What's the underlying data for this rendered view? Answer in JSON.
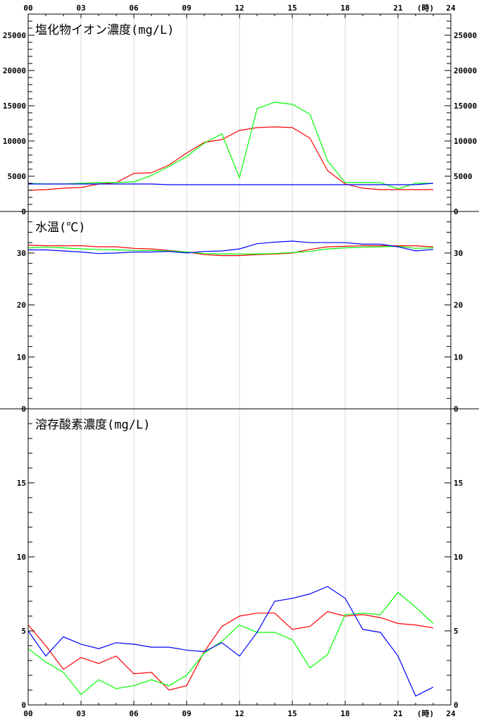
{
  "chart_data": {
    "type": "line",
    "x_unit": "(時)",
    "x_ticks": [
      "00",
      "03",
      "06",
      "09",
      "12",
      "15",
      "18",
      "21",
      "24"
    ],
    "x_range": [
      0,
      24
    ],
    "x": [
      0,
      1,
      2,
      3,
      4,
      5,
      6,
      7,
      8,
      9,
      10,
      11,
      12,
      13,
      14,
      15,
      16,
      17,
      18,
      19,
      20,
      21,
      22,
      23
    ],
    "panels": [
      {
        "title": "塩化物イオン濃度(mg/L)",
        "ylim": [
          0,
          28000
        ],
        "y_ticks": [
          0,
          5000,
          10000,
          15000,
          20000,
          25000
        ],
        "minor_step": 1000,
        "series": [
          {
            "color": "#ff0000",
            "values": [
              3000,
              3100,
              3300,
              3400,
              3900,
              4100,
              5400,
              5500,
              6600,
              8300,
              9800,
              10200,
              11500,
              11900,
              12000,
              11900,
              10400,
              5800,
              3900,
              3300,
              3100,
              3100,
              3100,
              3100
            ]
          },
          {
            "color": "#00ff00",
            "values": [
              4000,
              3900,
              3900,
              4000,
              4100,
              4100,
              4200,
              5100,
              6400,
              7800,
              9700,
              11000,
              4800,
              14600,
              15500,
              15200,
              13800,
              7200,
              4100,
              4100,
              4100,
              3200,
              4000,
              4000
            ]
          },
          {
            "color": "#0000ff",
            "values": [
              3900,
              3900,
              3900,
              3900,
              3900,
              3900,
              3900,
              3900,
              3800,
              3800,
              3800,
              3800,
              3800,
              3800,
              3800,
              3800,
              3800,
              3800,
              3800,
              3800,
              3800,
              3800,
              3800,
              4000
            ]
          }
        ]
      },
      {
        "title": "水温(℃)",
        "ylim": [
          0,
          38
        ],
        "y_ticks": [
          0,
          10,
          20,
          30
        ],
        "minor_step": 2,
        "series": [
          {
            "color": "#ff0000",
            "values": [
              31.5,
              31.4,
              31.4,
              31.4,
              31.2,
              31.2,
              30.9,
              30.8,
              30.5,
              30.2,
              29.7,
              29.5,
              29.5,
              29.7,
              29.8,
              30.0,
              30.7,
              31.2,
              31.3,
              31.4,
              31.4,
              31.4,
              31.4,
              31.2
            ]
          },
          {
            "color": "#00ff00",
            "values": [
              31.0,
              31.1,
              31.0,
              30.8,
              30.7,
              30.6,
              30.5,
              30.5,
              30.4,
              30.2,
              29.9,
              29.8,
              29.8,
              29.8,
              29.9,
              30.1,
              30.3,
              30.8,
              31.0,
              31.1,
              31.2,
              31.3,
              30.9,
              31.0
            ]
          },
          {
            "color": "#0000ff",
            "values": [
              30.6,
              30.6,
              30.4,
              30.2,
              29.9,
              30.0,
              30.2,
              30.2,
              30.3,
              30.0,
              30.3,
              30.4,
              30.8,
              31.8,
              32.1,
              32.3,
              32.0,
              32.0,
              32.0,
              31.7,
              31.7,
              31.2,
              30.4,
              30.7
            ]
          }
        ]
      },
      {
        "title": "溶存酸素濃度(mg/L)",
        "ylim": [
          0,
          20
        ],
        "y_ticks": [
          0,
          5,
          10,
          15
        ],
        "minor_step": 1,
        "series": [
          {
            "color": "#ff0000",
            "values": [
              5.4,
              4.0,
              2.4,
              3.2,
              2.8,
              3.3,
              2.1,
              2.2,
              1.0,
              1.3,
              3.6,
              5.3,
              6.0,
              6.2,
              6.2,
              5.1,
              5.3,
              6.3,
              6.0,
              6.1,
              5.9,
              5.5,
              5.4,
              5.2
            ]
          },
          {
            "color": "#00ff00",
            "values": [
              3.8,
              2.9,
              2.2,
              0.7,
              1.7,
              1.1,
              1.3,
              1.7,
              1.3,
              2.0,
              3.5,
              4.3,
              5.4,
              4.9,
              4.9,
              4.4,
              2.5,
              3.4,
              6.1,
              6.2,
              6.1,
              7.6,
              6.6,
              5.5
            ]
          },
          {
            "color": "#0000ff",
            "values": [
              5.0,
              3.3,
              4.6,
              4.1,
              3.8,
              4.2,
              4.1,
              3.9,
              3.9,
              3.7,
              3.6,
              4.2,
              3.3,
              4.9,
              7.0,
              7.2,
              7.5,
              8.0,
              7.2,
              5.1,
              4.9,
              3.3,
              0.6,
              1.2
            ]
          }
        ]
      }
    ]
  }
}
